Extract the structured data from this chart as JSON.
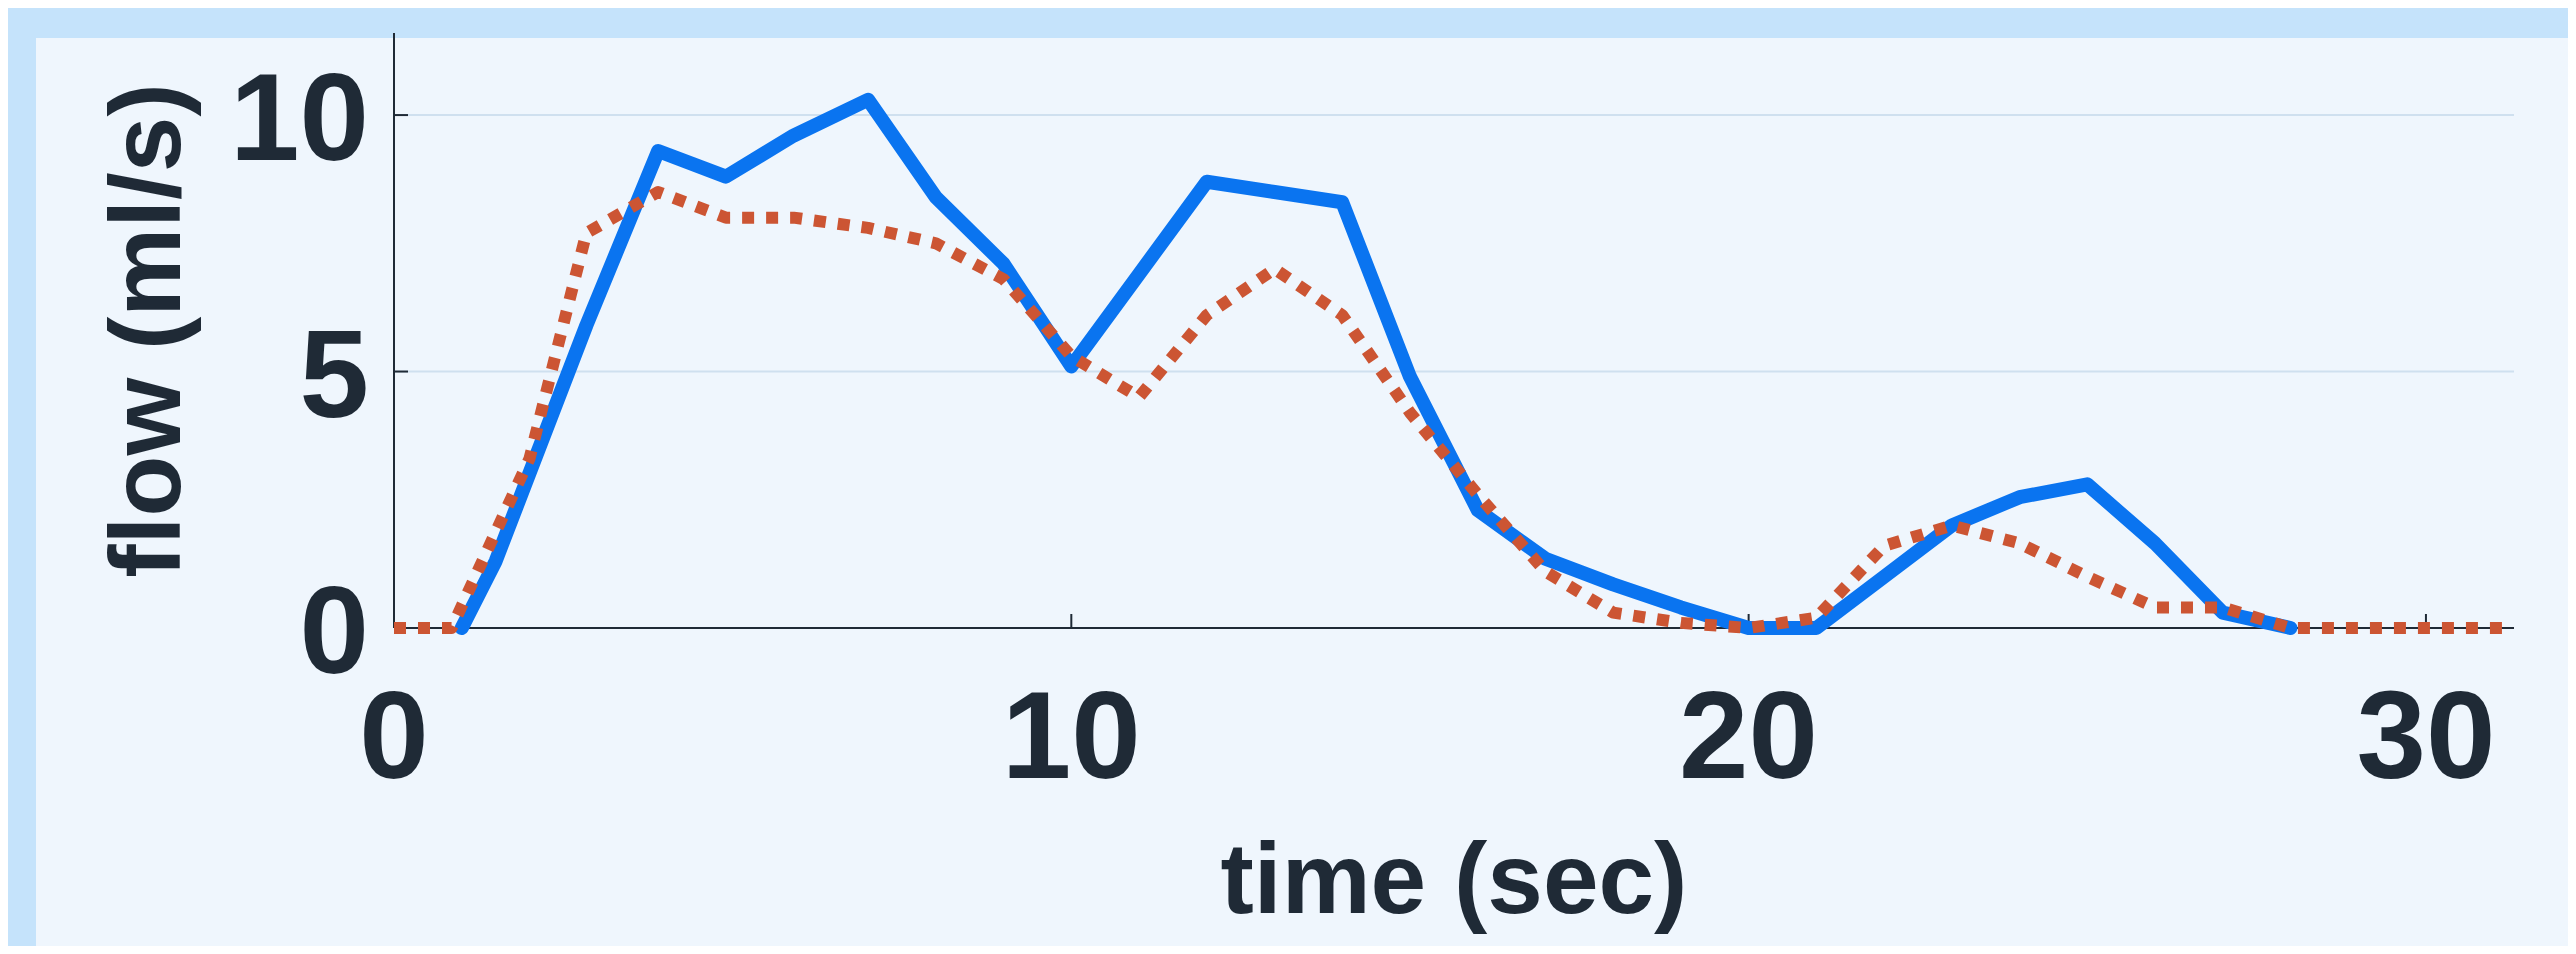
{
  "chart_data": {
    "type": "line",
    "xlabel": "time (sec)",
    "ylabel": "flow (ml/s)",
    "xlim": [
      0,
      31.3
    ],
    "ylim": [
      0,
      11.6
    ],
    "xticks": [
      0,
      10,
      20,
      30
    ],
    "yticks": [
      0,
      5,
      10
    ],
    "grid": "y",
    "series": [
      {
        "color": "#0a74f0",
        "line_style": "solid",
        "x": [
          1,
          1.5,
          2.84,
          3.9,
          4.9,
          5.9,
          7,
          8,
          9,
          10,
          11,
          12,
          13,
          14,
          15,
          16,
          17,
          18,
          19,
          20,
          21,
          22,
          23,
          24,
          25,
          26,
          27,
          28
        ],
        "values": [
          0,
          1.3,
          5.9,
          9.3,
          8.8,
          9.6,
          10.3,
          8.4,
          7.1,
          5.1,
          6.9,
          8.7,
          8.5,
          8.3,
          4.9,
          2.3,
          1.35,
          0.85,
          0.4,
          0,
          0,
          1,
          2,
          2.55,
          2.8,
          1.65,
          0.3,
          0
        ]
      },
      {
        "color": "#cc5533",
        "line_style": "dotted",
        "x": [
          0,
          0.85,
          2,
          2.84,
          3.9,
          4.9,
          5.9,
          7,
          8,
          9,
          10,
          11,
          12,
          13,
          14,
          15,
          16,
          17,
          18,
          19,
          20,
          21,
          22,
          23,
          24,
          25,
          26,
          27,
          28,
          29,
          30,
          31.2
        ],
        "values": [
          0,
          0,
          3.3,
          7.7,
          8.5,
          8,
          8,
          7.8,
          7.5,
          6.8,
          5.3,
          4.5,
          6.1,
          7,
          6.1,
          4.2,
          2.6,
          1.1,
          0.3,
          0.1,
          0,
          0.2,
          1.6,
          2,
          1.65,
          1,
          0.4,
          0.4,
          0,
          0,
          0,
          0
        ]
      }
    ]
  }
}
